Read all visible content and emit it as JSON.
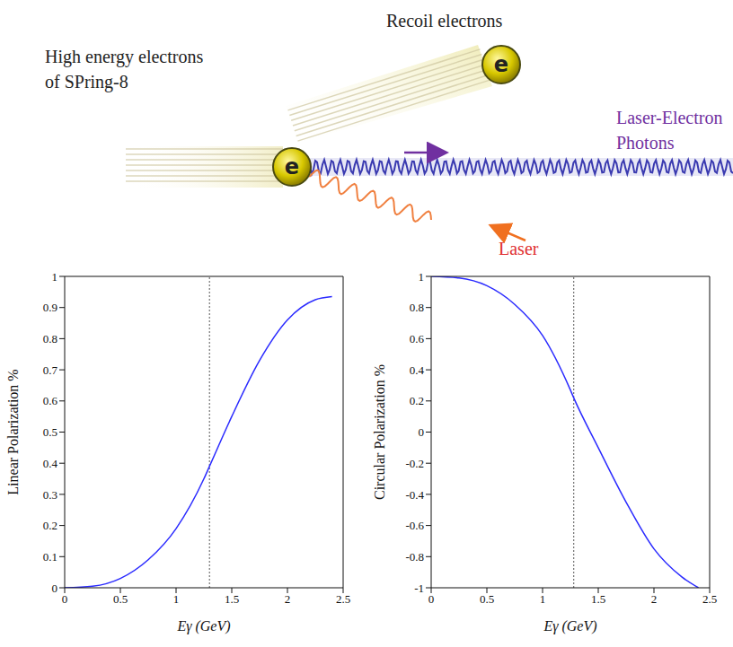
{
  "diagram": {
    "recoil_label": "Recoil electrons",
    "source_label": [
      "High energy electrons",
      "of SPring-8"
    ],
    "photon_label": [
      "Laser-Electron",
      "Photons"
    ],
    "laser_label": "Laser",
    "electron_symbol": "e"
  },
  "chart_data": [
    {
      "type": "line",
      "x_label": "Eγ (GeV)",
      "y_label": "Linear Polarization %",
      "x": [
        0,
        0.25,
        0.5,
        0.75,
        1.0,
        1.25,
        1.3,
        1.5,
        1.75,
        2.0,
        2.25,
        2.4
      ],
      "values": [
        0,
        0.005,
        0.03,
        0.09,
        0.19,
        0.35,
        0.39,
        0.55,
        0.73,
        0.86,
        0.925,
        0.935
      ],
      "color": "#2b2bff",
      "xlim": [
        0,
        2.5
      ],
      "xticks": [
        0,
        0.5,
        1,
        1.5,
        2,
        2.5
      ],
      "ylim": [
        0,
        1
      ],
      "yticks": [
        0,
        0.1,
        0.2,
        0.3,
        0.4,
        0.5,
        0.6,
        0.7,
        0.8,
        0.9,
        1
      ],
      "reference_x": 1.3,
      "grid": false
    },
    {
      "type": "line",
      "x_label": "Eγ (GeV)",
      "y_label": "Circular Polarization %",
      "x": [
        0,
        0.25,
        0.5,
        0.75,
        1.0,
        1.25,
        1.28,
        1.5,
        1.75,
        2.0,
        2.25,
        2.4
      ],
      "values": [
        1,
        0.99,
        0.94,
        0.82,
        0.62,
        0.27,
        0.22,
        -0.1,
        -0.45,
        -0.75,
        -0.93,
        -1
      ],
      "color": "#2b2bff",
      "xlim": [
        0,
        2.5
      ],
      "xticks": [
        0,
        0.5,
        1,
        1.5,
        2,
        2.5
      ],
      "ylim": [
        -1,
        1
      ],
      "yticks": [
        -1,
        -0.8,
        -0.6,
        -0.4,
        -0.2,
        0,
        0.2,
        0.4,
        0.6,
        0.8,
        1
      ],
      "reference_x": 1.28,
      "grid": false
    }
  ]
}
